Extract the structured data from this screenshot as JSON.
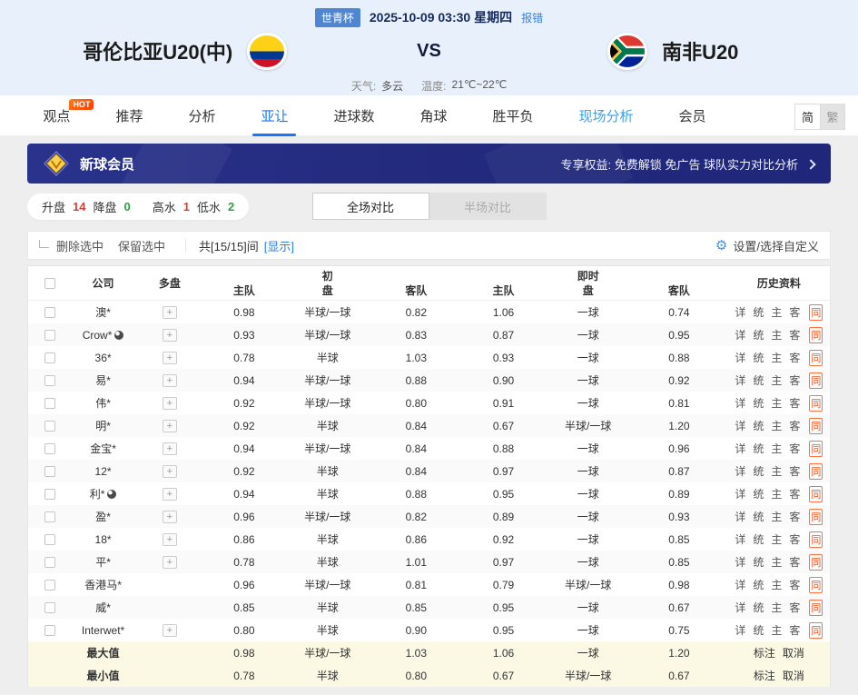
{
  "colors": {
    "accent_blue": "#1676fe",
    "up_red": "#e53935",
    "down_green": "#2e9e43",
    "banner_navy": "#232b7e",
    "summary_bg": "#fbf9e4",
    "same_red": "#f4511e",
    "header_bg": "#e8f1fb"
  },
  "header": {
    "league_badge": "世青杯",
    "datetime": "2025-10-09 03:30 星期四",
    "report_link": "报错",
    "home_team": "哥伦比亚U20(中)",
    "vs": "VS",
    "away_team": "南非U20",
    "weather_label": "天气:",
    "weather_value": "多云",
    "temp_label": "温度:",
    "temp_value": "21℃~22℃"
  },
  "nav": {
    "tabs": [
      {
        "label": "观点",
        "badge": "HOT"
      },
      {
        "label": "推荐"
      },
      {
        "label": "分析"
      },
      {
        "label": "亚让"
      },
      {
        "label": "进球数"
      },
      {
        "label": "角球"
      },
      {
        "label": "胜平负"
      },
      {
        "label": "现场分析"
      },
      {
        "label": "会员"
      }
    ],
    "lang_simplified": "简",
    "lang_traditional": "繁"
  },
  "banner": {
    "title": "新球会员",
    "benefits": "专享权益: 免费解锁 免广告 球队实力对比分析"
  },
  "filters": {
    "stats": [
      {
        "label": "升盘",
        "value": "14"
      },
      {
        "label": "降盘",
        "value": "0"
      },
      {
        "label": "高水",
        "value": "1"
      },
      {
        "label": "低水",
        "value": "2"
      }
    ],
    "toggle_full": "全场对比",
    "toggle_half": "半场对比"
  },
  "controls": {
    "delete_selected": "删除选中",
    "keep_selected": "保留选中",
    "count_text": "共[15/15]间",
    "show_link": "[显示]",
    "gear_glyph": "⚙",
    "settings": "设置/选择自定义"
  },
  "table": {
    "col_company": "公司",
    "col_multi": "多盘",
    "col_initial_top": "初",
    "col_live_top": "即时",
    "col_pan": "盘",
    "col_home": "主队",
    "col_away": "客队",
    "col_history": "历史资料",
    "plus_label": "+",
    "history_links": [
      "详",
      "统",
      "主",
      "客",
      "同"
    ],
    "summary_actions": [
      "标注",
      "取消"
    ],
    "rows": [
      {
        "company": "澳*",
        "ball": false,
        "multi": true,
        "i_home": "0.98",
        "i_hcap": "半球/一球",
        "i_away": "0.82",
        "l_home": "1.06",
        "l_hcap": "一球",
        "l_away": "0.74"
      },
      {
        "company": "Crow*",
        "ball": true,
        "multi": true,
        "i_home": "0.93",
        "i_hcap": "半球/一球",
        "i_away": "0.83",
        "l_home": "0.87",
        "l_hcap": "一球",
        "l_away": "0.95"
      },
      {
        "company": "36*",
        "ball": false,
        "multi": true,
        "i_home": "0.78",
        "i_hcap": "半球",
        "i_away": "1.03",
        "l_home": "0.93",
        "l_hcap": "一球",
        "l_away": "0.88"
      },
      {
        "company": "易*",
        "ball": false,
        "multi": true,
        "i_home": "0.94",
        "i_hcap": "半球/一球",
        "i_away": "0.88",
        "l_home": "0.90",
        "l_hcap": "一球",
        "l_away": "0.92"
      },
      {
        "company": "伟*",
        "ball": false,
        "multi": true,
        "i_home": "0.92",
        "i_hcap": "半球/一球",
        "i_away": "0.80",
        "l_home": "0.91",
        "l_hcap": "一球",
        "l_away": "0.81"
      },
      {
        "company": "明*",
        "ball": false,
        "multi": true,
        "i_home": "0.92",
        "i_hcap": "半球",
        "i_away": "0.84",
        "l_home": "0.67",
        "l_hcap": "半球/一球",
        "l_away": "1.20"
      },
      {
        "company": "金宝*",
        "ball": false,
        "multi": true,
        "i_home": "0.94",
        "i_hcap": "半球/一球",
        "i_away": "0.84",
        "l_home": "0.88",
        "l_hcap": "一球",
        "l_away": "0.96"
      },
      {
        "company": "12*",
        "ball": false,
        "multi": true,
        "i_home": "0.92",
        "i_hcap": "半球",
        "i_away": "0.84",
        "l_home": "0.97",
        "l_hcap": "一球",
        "l_away": "0.87"
      },
      {
        "company": "利*",
        "ball": true,
        "multi": true,
        "i_home": "0.94",
        "i_hcap": "半球",
        "i_away": "0.88",
        "l_home": "0.95",
        "l_hcap": "一球",
        "l_away": "0.89"
      },
      {
        "company": "盈*",
        "ball": false,
        "multi": true,
        "i_home": "0.96",
        "i_hcap": "半球/一球",
        "i_away": "0.82",
        "l_home": "0.89",
        "l_hcap": "一球",
        "l_away": "0.93"
      },
      {
        "company": "18*",
        "ball": false,
        "multi": true,
        "i_home": "0.86",
        "i_hcap": "半球",
        "i_away": "0.86",
        "l_home": "0.92",
        "l_hcap": "一球",
        "l_away": "0.85"
      },
      {
        "company": "平*",
        "ball": false,
        "multi": true,
        "i_home": "0.78",
        "i_hcap": "半球",
        "i_away": "1.01",
        "l_home": "0.97",
        "l_hcap": "一球",
        "l_away": "0.85"
      },
      {
        "company": "香港马*",
        "ball": false,
        "multi": false,
        "i_home": "0.96",
        "i_hcap": "半球/一球",
        "i_away": "0.81",
        "l_home": "0.79",
        "l_hcap": "半球/一球",
        "l_away": "0.98"
      },
      {
        "company": "威*",
        "ball": false,
        "multi": false,
        "i_home": "0.85",
        "i_hcap": "半球",
        "i_away": "0.85",
        "l_home": "0.95",
        "l_hcap": "一球",
        "l_away": "0.67"
      },
      {
        "company": "Interwet*",
        "ball": false,
        "multi": true,
        "i_home": "0.80",
        "i_hcap": "半球",
        "i_away": "0.90",
        "l_home": "0.95",
        "l_hcap": "一球",
        "l_away": "0.75"
      }
    ],
    "summary_rows": [
      {
        "label": "最大值",
        "i_home": "0.98",
        "i_hcap": "半球/一球",
        "i_away": "1.03",
        "l_home": "1.06",
        "l_hcap": "一球",
        "l_away": "1.20"
      },
      {
        "label": "最小值",
        "i_home": "0.78",
        "i_hcap": "半球",
        "i_away": "0.80",
        "l_home": "0.67",
        "l_hcap": "半球/一球",
        "l_away": "0.67"
      }
    ]
  }
}
